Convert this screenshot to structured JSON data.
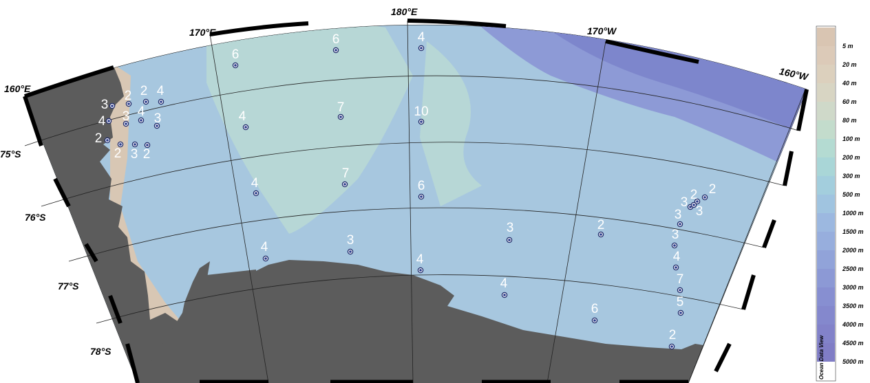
{
  "map": {
    "lon_labels": [
      "160°E",
      "170°E",
      "180°E",
      "170°W",
      "160°W"
    ],
    "lat_labels": [
      "75°S",
      "76°S",
      "77°S",
      "78°S"
    ],
    "colors": {
      "land": "#5c5c5c",
      "shelf": "#a7c7df",
      "shallow": "#b7d7d6",
      "deep": "#7d86cc",
      "coast_tint": "#d8c7b4"
    }
  },
  "stations": [
    {
      "count": "6"
    },
    {
      "count": "6"
    },
    {
      "count": "4"
    },
    {
      "count": "3"
    },
    {
      "count": "2"
    },
    {
      "count": "2"
    },
    {
      "count": "4"
    },
    {
      "count": "4"
    },
    {
      "count": "3"
    },
    {
      "count": "4"
    },
    {
      "count": "3"
    },
    {
      "count": "2"
    },
    {
      "count": "2"
    },
    {
      "count": "3"
    },
    {
      "count": "2"
    },
    {
      "count": "4"
    },
    {
      "count": "7"
    },
    {
      "count": "10"
    },
    {
      "count": "4"
    },
    {
      "count": "7"
    },
    {
      "count": "6"
    },
    {
      "count": "4"
    },
    {
      "count": "3"
    },
    {
      "count": "4"
    },
    {
      "count": "3"
    },
    {
      "count": "4"
    },
    {
      "count": "2"
    },
    {
      "count": "6"
    },
    {
      "count": "2"
    },
    {
      "count": "2"
    },
    {
      "count": "3"
    },
    {
      "count": "3"
    },
    {
      "count": "3"
    },
    {
      "count": "3"
    },
    {
      "count": "4"
    },
    {
      "count": "7"
    },
    {
      "count": "5"
    },
    {
      "count": "2"
    }
  ],
  "legend": {
    "title": "Ocean Data View",
    "levels": [
      {
        "label": "5 m",
        "color": "#d9c5b2"
      },
      {
        "label": "20 m",
        "color": "#dccab8"
      },
      {
        "label": "40 m",
        "color": "#dcd0bd"
      },
      {
        "label": "60 m",
        "color": "#d8d5c3"
      },
      {
        "label": "80 m",
        "color": "#cfd9c9"
      },
      {
        "label": "100 m",
        "color": "#c3dccc"
      },
      {
        "label": "200 m",
        "color": "#b4dbd2"
      },
      {
        "label": "300 m",
        "color": "#a9d6d7"
      },
      {
        "label": "500 m",
        "color": "#a3cedd"
      },
      {
        "label": "1000 m",
        "color": "#a0c4e0"
      },
      {
        "label": "1500 m",
        "color": "#9cb8e0"
      },
      {
        "label": "2000 m",
        "color": "#97aedd"
      },
      {
        "label": "2500 m",
        "color": "#91a3d9"
      },
      {
        "label": "3000 m",
        "color": "#8c99d5"
      },
      {
        "label": "3500 m",
        "color": "#878fd1"
      },
      {
        "label": "4000 m",
        "color": "#8488cd"
      },
      {
        "label": "4500 m",
        "color": "#8282c9"
      },
      {
        "label": "5000 m",
        "color": "#807dc5"
      }
    ]
  }
}
